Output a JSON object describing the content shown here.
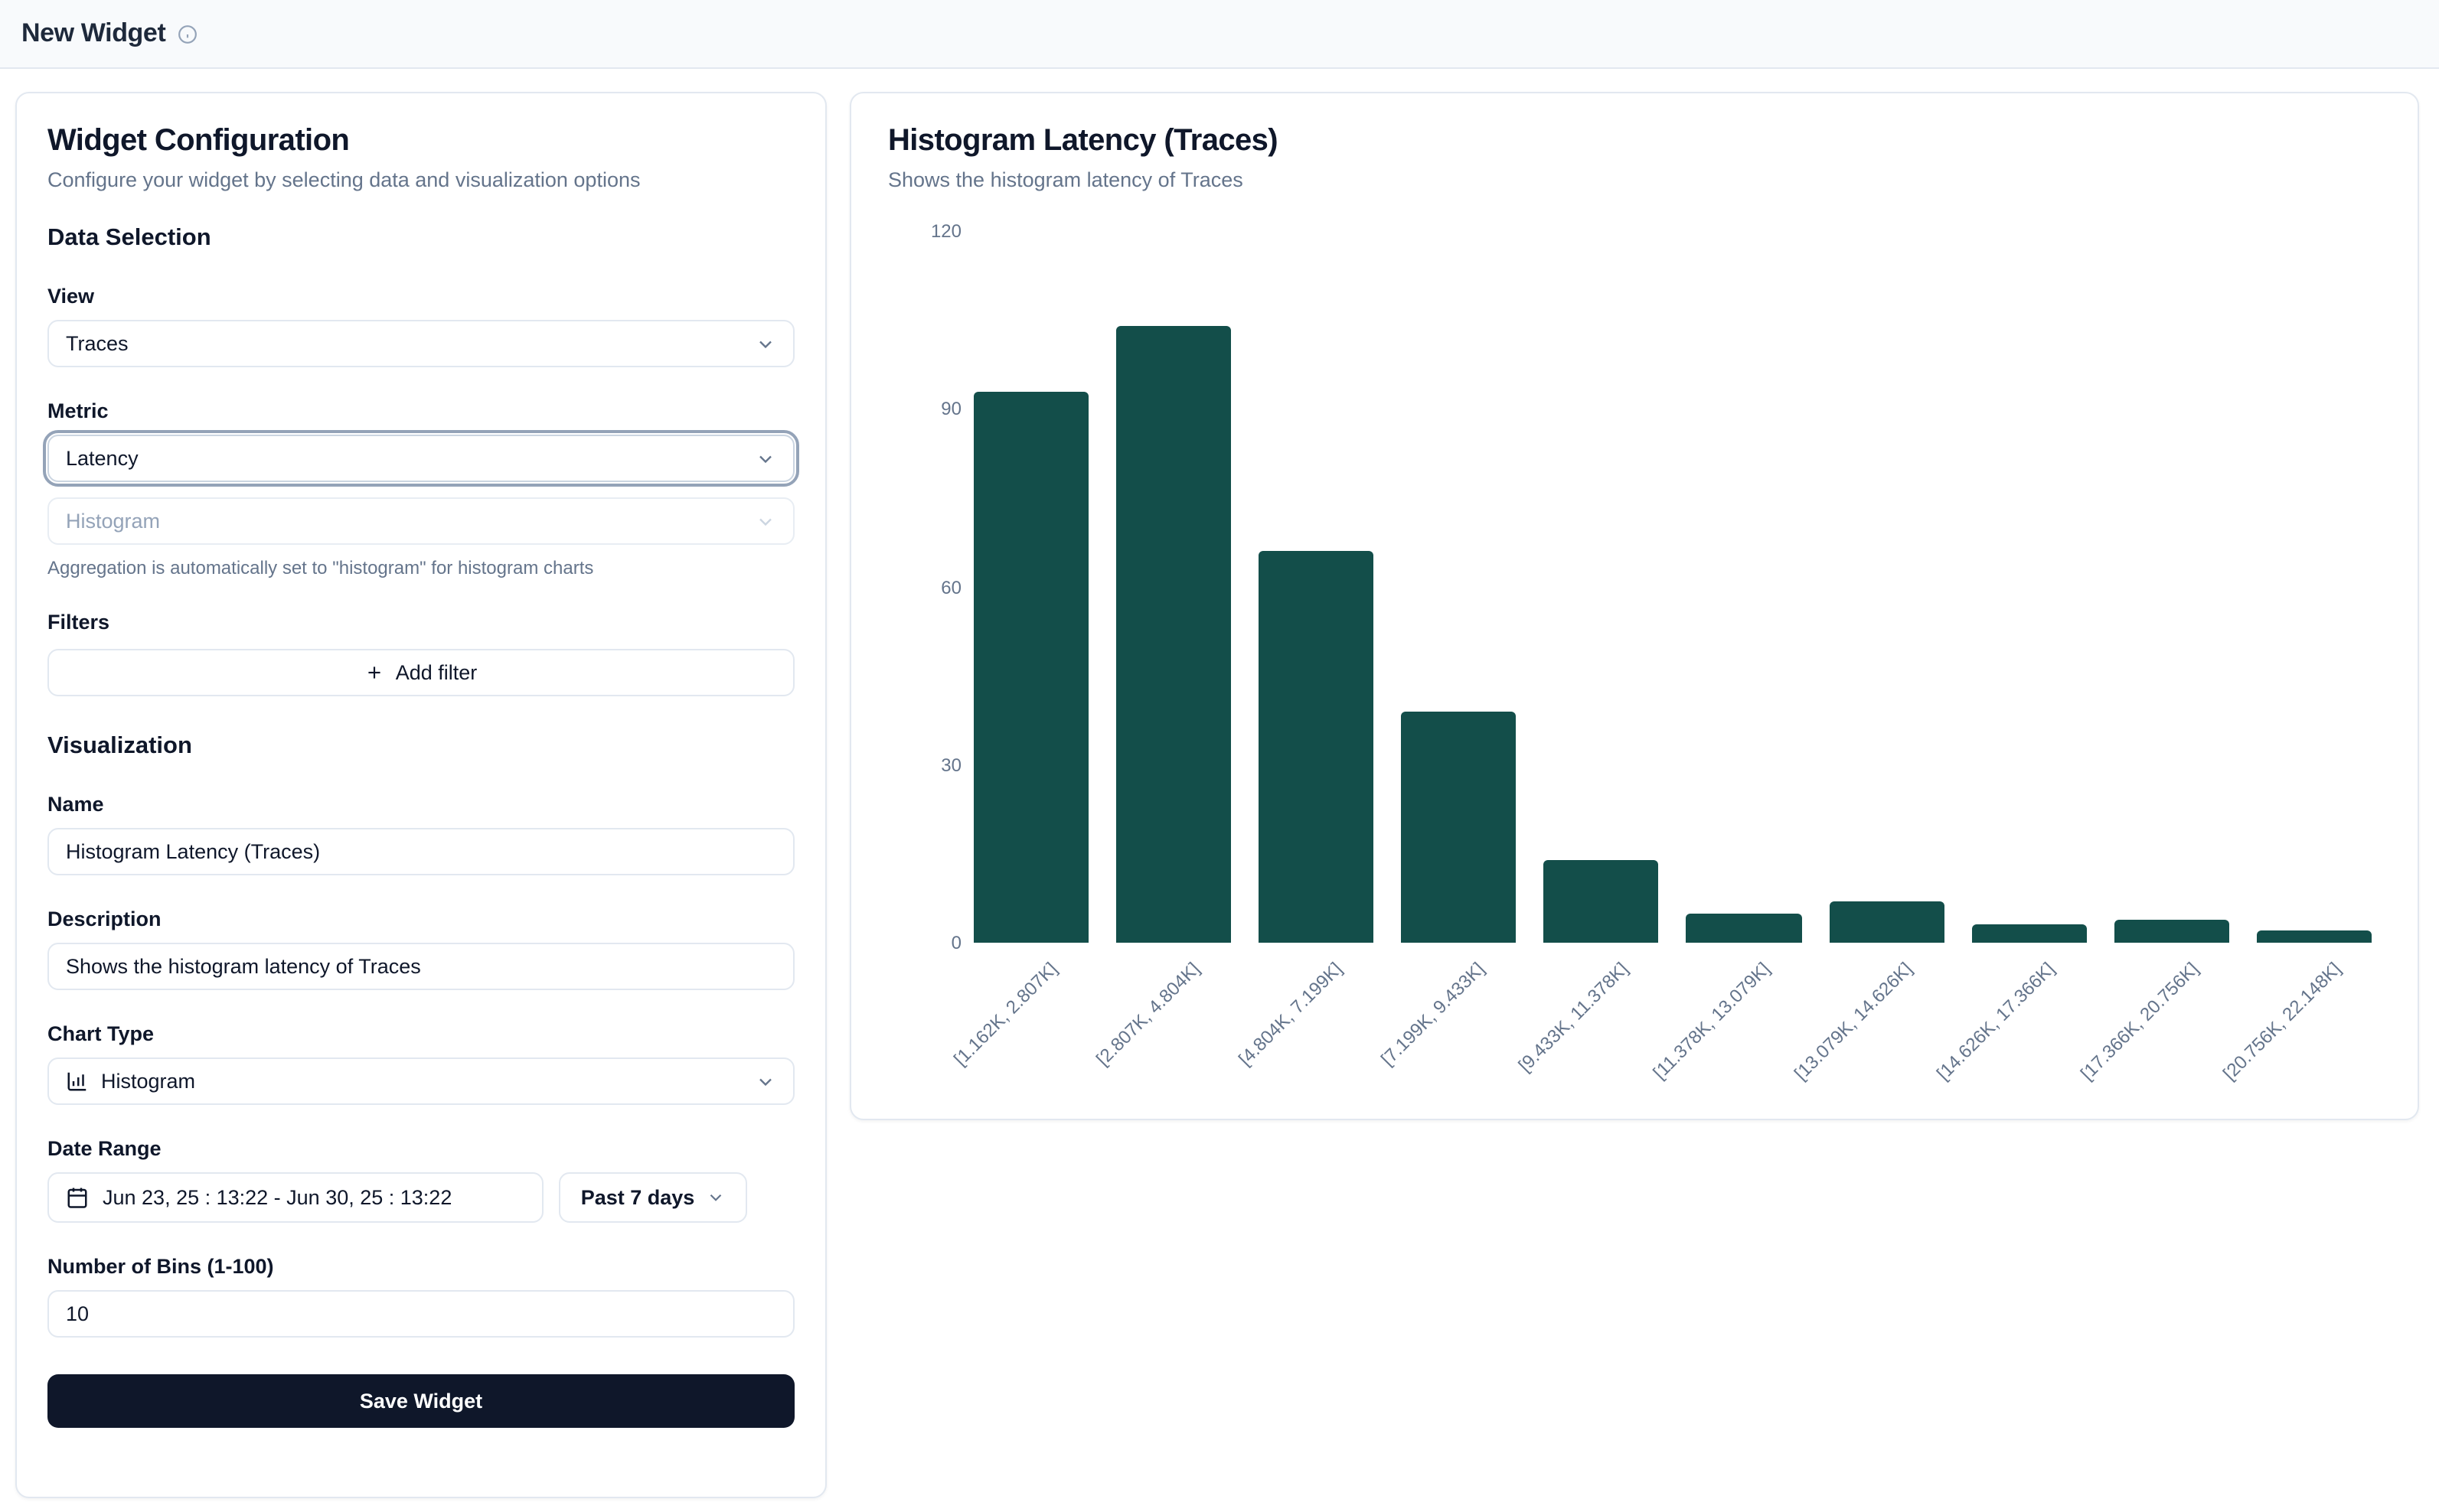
{
  "header": {
    "title": "New Widget"
  },
  "config": {
    "title": "Widget Configuration",
    "subtitle": "Configure your widget by selecting data and visualization options",
    "data_selection": {
      "heading": "Data Selection",
      "view_label": "View",
      "view_value": "Traces",
      "metric_label": "Metric",
      "metric_value": "Latency",
      "aggregation_value": "Histogram",
      "aggregation_note": "Aggregation is automatically set to \"histogram\" for histogram charts",
      "filters_label": "Filters",
      "add_filter_label": "Add filter"
    },
    "visualization": {
      "heading": "Visualization",
      "name_label": "Name",
      "name_value": "Histogram Latency (Traces)",
      "description_label": "Description",
      "description_value": "Shows the histogram latency of Traces",
      "chart_type_label": "Chart Type",
      "chart_type_value": "Histogram",
      "date_range_label": "Date Range",
      "date_range_value": "Jun 23, 25 : 13:22 - Jun 30, 25 : 13:22",
      "date_preset_value": "Past 7 days",
      "bins_label": "Number of Bins (1-100)",
      "bins_value": "10",
      "save_label": "Save Widget"
    }
  },
  "preview": {
    "title": "Histogram Latency (Traces)",
    "subtitle": "Shows the histogram latency of Traces"
  },
  "chart_data": {
    "type": "bar",
    "title": "Histogram Latency (Traces)",
    "categories": [
      "[1.162K, 2.807K]",
      "[2.807K, 4.804K]",
      "[4.804K, 7.199K]",
      "[7.199K, 9.433K]",
      "[9.433K, 11.378K]",
      "[11.378K, 13.079K]",
      "[13.079K, 14.626K]",
      "[14.626K, 17.366K]",
      "[17.366K, 20.756K]",
      "[20.756K, 22.148K]"
    ],
    "values": [
      93,
      104,
      66,
      39,
      14,
      5,
      7,
      3,
      4,
      2
    ],
    "xlabel": "",
    "ylabel": "",
    "ylim": [
      0,
      120
    ],
    "yticks": [
      0,
      30,
      60,
      90,
      120
    ],
    "grid": false,
    "legend": false,
    "bar_color": "#134e4a"
  },
  "colors": {
    "bar": "#134e4a",
    "save_button": "#0f172a",
    "border": "#e2e8f0",
    "muted_text": "#64748b",
    "header_bg": "#f8fafc"
  }
}
